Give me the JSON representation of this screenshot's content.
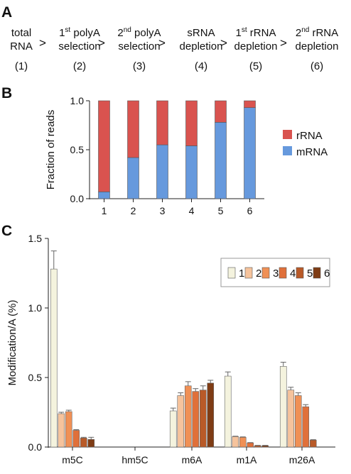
{
  "panel_labels": [
    "A",
    "B",
    "C"
  ],
  "colors": {
    "rRNA": "#d9534f",
    "mRNA": "#6699dd",
    "samples": [
      "#f4f3de",
      "#f6c39c",
      "#f09055",
      "#e0703a",
      "#b95a28",
      "#7f3c15"
    ]
  },
  "panel_a": {
    "steps": [
      {
        "lines": [
          "total",
          "RNA"
        ],
        "sup": null,
        "num": "(1)"
      },
      {
        "lines": [
          "1",
          "polyA",
          "selection"
        ],
        "sup": "st",
        "num": "(2)"
      },
      {
        "lines": [
          "2",
          "polyA",
          "selection"
        ],
        "sup": "nd",
        "num": "(3)"
      },
      {
        "lines": [
          "sRNA",
          "",
          "depletion"
        ],
        "sup": null,
        "num": "(4)"
      },
      {
        "lines": [
          "1",
          "rRNA",
          "depletion"
        ],
        "sup": "st",
        "num": "(5)"
      },
      {
        "lines": [
          "2",
          "rRNA",
          "depletion"
        ],
        "sup": "nd",
        "num": "(6)"
      }
    ],
    "arrow": ">"
  },
  "chart_data": [
    {
      "type": "bar",
      "stacked": true,
      "categories": [
        "1",
        "2",
        "3",
        "4",
        "5",
        "6"
      ],
      "series": [
        {
          "name": "mRNA",
          "values": [
            0.07,
            0.42,
            0.55,
            0.54,
            0.78,
            0.93
          ]
        },
        {
          "name": "rRNA",
          "values": [
            0.93,
            0.58,
            0.45,
            0.46,
            0.22,
            0.07
          ]
        }
      ],
      "ylabel": "Fraction of reads",
      "ylim": [
        0,
        1.0
      ],
      "yticks": [
        "0.0",
        "0.5",
        "1.0"
      ],
      "legend": [
        "rRNA",
        "mRNA"
      ],
      "legend_position": "right"
    },
    {
      "type": "bar",
      "categories": [
        "m5C",
        "hm5C",
        "m6A",
        "m1A",
        "m26A"
      ],
      "series": [
        {
          "name": "1",
          "values": [
            1.28,
            0.0,
            0.26,
            0.51,
            0.58
          ],
          "errors": [
            0.13,
            0,
            0.02,
            0.03,
            0.03
          ]
        },
        {
          "name": "2",
          "values": [
            0.24,
            0.0,
            0.37,
            0.075,
            0.41
          ],
          "errors": [
            0.01,
            0,
            0.02,
            0.003,
            0.02
          ]
        },
        {
          "name": "3",
          "values": [
            0.255,
            0.0,
            0.44,
            0.07,
            0.37
          ],
          "errors": [
            0.01,
            0,
            0.03,
            0.003,
            0.02
          ]
        },
        {
          "name": "4",
          "values": [
            0.12,
            0.0,
            0.4,
            0.03,
            0.29
          ],
          "errors": [
            0.005,
            0,
            0.02,
            0.002,
            0.015
          ]
        },
        {
          "name": "5",
          "values": [
            0.065,
            0.0,
            0.41,
            0.01,
            0.05
          ],
          "errors": [
            0.005,
            0,
            0.03,
            0.002,
            0.003
          ]
        },
        {
          "name": "6",
          "values": [
            0.055,
            0.0,
            0.46,
            0.01,
            0.0
          ],
          "errors": [
            0.015,
            0,
            0.02,
            0.002,
            0
          ]
        }
      ],
      "ylabel": "Modification/A (%)",
      "ylim": [
        0,
        1.5
      ],
      "yticks": [
        "0.0",
        "0.5",
        "1.0",
        "1.5"
      ],
      "legend": [
        "1",
        "2",
        "3",
        "4",
        "5",
        "6"
      ],
      "legend_position": "top-right"
    }
  ]
}
